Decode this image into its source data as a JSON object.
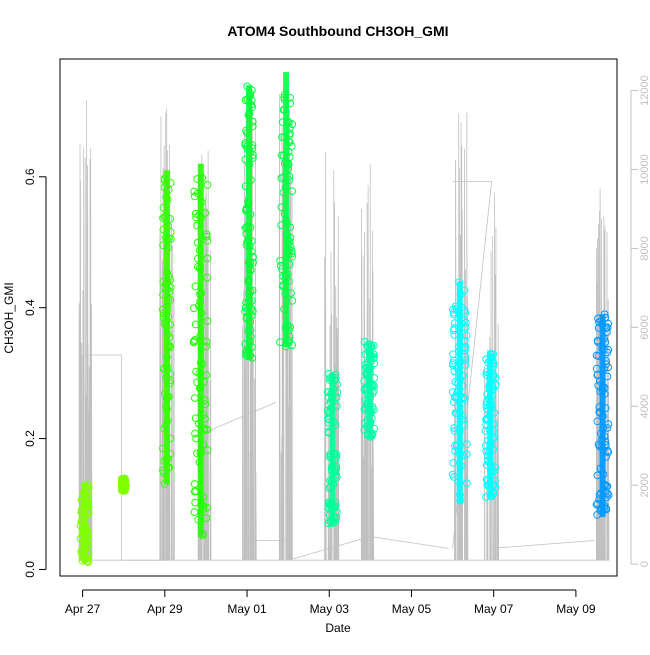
{
  "chart_data": {
    "type": "scatter",
    "title": "ATOM4 Southbound CH3OH_GMI",
    "xlabel": "Date",
    "ylabel": "CH3OH_GMI",
    "x_ticks": [
      "Apr 27",
      "Apr 29",
      "May 01",
      "May 03",
      "May 05",
      "May 07",
      "May 09"
    ],
    "x_tick_days": [
      0,
      2,
      4,
      6,
      8,
      10,
      12
    ],
    "xlim_days": [
      -0.55,
      13.0
    ],
    "y_ticks": [
      0.0,
      0.2,
      0.4,
      0.6
    ],
    "y_tick_labels": [
      "0.0",
      "0.2",
      "0.4",
      "0.6"
    ],
    "ylim": [
      -0.01,
      0.78
    ],
    "y2_ticks": [
      0,
      2000,
      4000,
      6000,
      8000,
      10000,
      12000
    ],
    "y2_tick_labels": [
      "0",
      "2000",
      "4000",
      "6000",
      "8000",
      "10000",
      "12000"
    ],
    "y2lim": [
      -300,
      12800
    ],
    "y2_series_color": "#c0c0c0",
    "grid": false,
    "point_series": [
      {
        "color": "#80ff00",
        "x_range": [
          -0.05,
          0.15
        ],
        "y_range": [
          0.01,
          0.13
        ]
      },
      {
        "color": "#80ff00",
        "x_range": [
          0.95,
          1.05
        ],
        "y_range": [
          0.12,
          0.14
        ]
      },
      {
        "color": "#33ff00",
        "x_range": [
          1.95,
          2.15
        ],
        "y_range": [
          0.13,
          0.61
        ]
      },
      {
        "color": "#22ff00",
        "x_range": [
          2.7,
          3.05
        ],
        "y_range": [
          0.05,
          0.62
        ]
      },
      {
        "color": "#00ff33",
        "x_range": [
          3.95,
          4.15
        ],
        "y_range": [
          0.32,
          0.74
        ]
      },
      {
        "color": "#00ff44",
        "x_range": [
          4.8,
          5.1
        ],
        "y_range": [
          0.34,
          0.76
        ]
      },
      {
        "color": "#00ff99",
        "x_range": [
          5.95,
          6.2
        ],
        "y_range": [
          0.07,
          0.3
        ]
      },
      {
        "color": "#00ffaa",
        "x_range": [
          6.85,
          7.1
        ],
        "y_range": [
          0.2,
          0.35
        ]
      },
      {
        "color": "#00ffff",
        "x_range": [
          9.0,
          9.35
        ],
        "y_range": [
          0.1,
          0.44
        ]
      },
      {
        "color": "#00ffff",
        "x_range": [
          9.8,
          10.05
        ],
        "y_range": [
          0.11,
          0.33
        ]
      },
      {
        "color": "#0099ff",
        "x_range": [
          12.5,
          12.8
        ],
        "y_range": [
          0.08,
          0.39
        ]
      }
    ]
  }
}
